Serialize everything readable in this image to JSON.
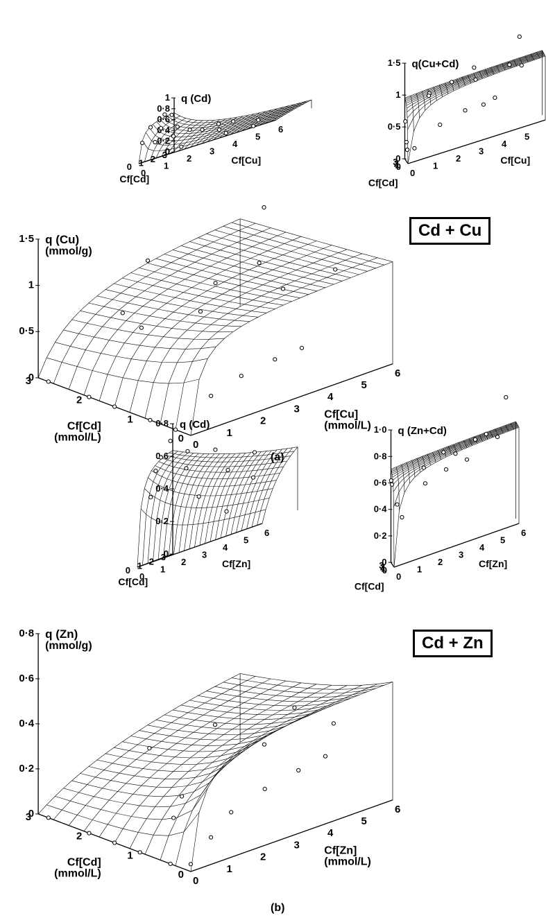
{
  "labels": {
    "panel_a": "(a)",
    "panel_b": "(b)",
    "system_a": "Cd + Cu",
    "system_b": "Cd + Zn"
  },
  "chart_data": [
    {
      "type": "surface3d",
      "title": "q (Cd)",
      "z_unit": "",
      "xlabel": "Cf[Cd]",
      "xlabel_unit": "",
      "ylabel": "Cf[Cu]",
      "ylabel_unit": "",
      "x_ticks": [
        "0",
        "1",
        "2",
        "3"
      ],
      "y_ticks": [
        "0",
        "1",
        "2",
        "3",
        "4",
        "5",
        "6"
      ],
      "z_ticks": [
        "0",
        "0·2",
        "0·4",
        "0·6",
        "0·8",
        "1"
      ],
      "xlim": [
        0,
        3
      ],
      "ylim": [
        0,
        6
      ],
      "zlim": [
        0,
        1
      ],
      "surface": "q = 0.8·x/(0.3 + x + 2y)",
      "points": [
        [
          0.3,
          0,
          0.36
        ],
        [
          1.0,
          0,
          0.6
        ],
        [
          2.2,
          0,
          0.75
        ],
        [
          2.8,
          0,
          0.7
        ],
        [
          0.8,
          0.3,
          0.3
        ],
        [
          1.5,
          0.2,
          0.52
        ],
        [
          2.5,
          0.4,
          0.45
        ],
        [
          1.0,
          1.0,
          0.3
        ],
        [
          2.0,
          1.2,
          0.32
        ],
        [
          1.5,
          2.0,
          0.25
        ],
        [
          2.5,
          2.2,
          0.26
        ],
        [
          0.5,
          1.6,
          0.06
        ],
        [
          1.0,
          3.0,
          0.15
        ],
        [
          1.8,
          3.2,
          0.22
        ],
        [
          0.6,
          3.5,
          0.05
        ],
        [
          1.4,
          4.5,
          0.1
        ],
        [
          0.4,
          4.8,
          0.02
        ]
      ]
    },
    {
      "type": "surface3d",
      "title": "q(Cu+Cd)",
      "z_unit": "",
      "xlabel": "Cf[Cd]",
      "xlabel_unit": "",
      "ylabel": "Cf[Cu]",
      "ylabel_unit": "",
      "x_ticks": [
        "0",
        "1",
        "2",
        "3"
      ],
      "y_ticks": [
        "0",
        "1",
        "2",
        "3",
        "4",
        "5",
        "6"
      ],
      "z_ticks": [
        "0",
        "0·5",
        "1",
        "1·5"
      ],
      "xlim": [
        0,
        3
      ],
      "ylim": [
        0,
        6
      ],
      "zlim": [
        0,
        1.5
      ],
      "surface": "q = 1.05·(x+y)/(0.3 + x + y)",
      "points": [
        [
          2.5,
          0,
          0.6
        ],
        [
          1.5,
          0,
          0.3
        ],
        [
          0.7,
          0,
          0.2
        ],
        [
          0.3,
          0.3,
          0.2
        ],
        [
          0,
          1.4,
          0.45
        ],
        [
          0,
          2.5,
          0.55
        ],
        [
          0,
          3.3,
          0.55
        ],
        [
          0,
          3.8,
          0.6
        ],
        [
          1.5,
          1.0,
          0.95
        ],
        [
          2.0,
          2.0,
          1.0
        ],
        [
          1.0,
          3.0,
          0.95
        ],
        [
          2.5,
          3.0,
          1.1
        ],
        [
          1.5,
          4.5,
          1.0
        ],
        [
          2.8,
          5.0,
          1.35
        ],
        [
          0.8,
          5.0,
          0.95
        ],
        [
          2.0,
          1.0,
          0.9
        ]
      ]
    },
    {
      "type": "surface3d",
      "title": "q (Cu)",
      "z_unit": "(mmol/g)",
      "xlabel": "Cf[Cd]",
      "xlabel_unit": "(mmol/L)",
      "ylabel": "Cf[Cu]",
      "ylabel_unit": "(mmol/L)",
      "x_ticks": [
        "0",
        "1",
        "2",
        "3"
      ],
      "y_ticks": [
        "0",
        "1",
        "2",
        "3",
        "4",
        "5",
        "6"
      ],
      "z_ticks": [
        "0",
        "0·5",
        "1",
        "1·5"
      ],
      "xlim": [
        0,
        3
      ],
      "ylim": [
        0,
        6
      ],
      "zlim": [
        0,
        1.5
      ],
      "surface": "q = 1.15·y/(0.25 + 0.35x + y)",
      "points": [
        [
          2.8,
          0,
          0
        ],
        [
          2.0,
          0,
          0
        ],
        [
          1.5,
          0,
          0
        ],
        [
          0.8,
          0,
          0
        ],
        [
          0.3,
          0,
          0
        ],
        [
          0,
          0.6,
          0.35
        ],
        [
          0,
          1.5,
          0.45
        ],
        [
          0,
          2.5,
          0.5
        ],
        [
          0,
          3.3,
          0.52
        ],
        [
          1.5,
          0.8,
          0.75
        ],
        [
          2.2,
          1.3,
          0.7
        ],
        [
          1.0,
          1.8,
          0.9
        ],
        [
          2.5,
          2.5,
          1.05
        ],
        [
          1.5,
          3.0,
          0.95
        ],
        [
          0.7,
          3.8,
          0.95
        ],
        [
          1.5,
          4.3,
          1.0
        ],
        [
          2.2,
          5.5,
          1.3
        ],
        [
          0.6,
          5.2,
          1.0
        ]
      ]
    },
    {
      "type": "surface3d",
      "title": "q (Cd)",
      "z_unit": "",
      "xlabel": "Cf[Cd]",
      "xlabel_unit": "",
      "ylabel": "Cf[Zn]",
      "ylabel_unit": "",
      "x_ticks": [
        "0",
        "1",
        "2",
        "3"
      ],
      "y_ticks": [
        "0",
        "1",
        "2",
        "3",
        "4",
        "5",
        "6"
      ],
      "z_ticks": [
        "0",
        "0·2",
        "0·4",
        "0·6",
        "0·8"
      ],
      "xlim": [
        0,
        3
      ],
      "ylim": [
        0,
        6
      ],
      "zlim": [
        0,
        0.8
      ],
      "surface": "q = 0.7·x/(0.3 + x + 0.35y)",
      "points": [
        [
          2.8,
          0,
          0.7
        ],
        [
          2.0,
          0,
          0.62
        ],
        [
          1.2,
          0.2,
          0.55
        ],
        [
          0.6,
          0.3,
          0.4
        ],
        [
          2.5,
          1.0,
          0.6
        ],
        [
          1.5,
          1.5,
          0.5
        ],
        [
          2.2,
          2.5,
          0.55
        ],
        [
          0.8,
          2.5,
          0.3
        ],
        [
          1.5,
          3.5,
          0.4
        ],
        [
          0.5,
          4.0,
          0.15
        ],
        [
          2.0,
          4.5,
          0.45
        ],
        [
          1.0,
          5.0,
          0.3
        ]
      ]
    },
    {
      "type": "surface3d",
      "title": "q (Zn+Cd)",
      "z_unit": "",
      "xlabel": "Cf[Cd]",
      "xlabel_unit": "",
      "ylabel": "Cf[Zn]",
      "ylabel_unit": "",
      "x_ticks": [
        "0",
        "1",
        "2",
        "3"
      ],
      "y_ticks": [
        "0",
        "1",
        "2",
        "3",
        "4",
        "5",
        "6"
      ],
      "z_ticks": [
        "0",
        "0·2",
        "0·4",
        "0·6",
        "0·8",
        "1·0"
      ],
      "xlim": [
        0,
        3
      ],
      "ylim": [
        0,
        6
      ],
      "zlim": [
        0,
        1
      ],
      "surface": "q = 0.75·(x+y)/(0.2 + x + y)",
      "points": [
        [
          2.8,
          0,
          0.62
        ],
        [
          2.0,
          0,
          0.6
        ],
        [
          1.0,
          0.2,
          0.45
        ],
        [
          0.4,
          0.4,
          0.35
        ],
        [
          0,
          1.5,
          0.55
        ],
        [
          0,
          2.5,
          0.6
        ],
        [
          0,
          3.5,
          0.62
        ],
        [
          2.5,
          5.5,
          0.95
        ],
        [
          1.5,
          1.5,
          0.65
        ],
        [
          2.5,
          2.5,
          0.7
        ],
        [
          1.0,
          3.0,
          0.68
        ],
        [
          2.0,
          4.0,
          0.72
        ],
        [
          0.7,
          5.0,
          0.7
        ],
        [
          1.5,
          4.5,
          0.74
        ]
      ]
    },
    {
      "type": "surface3d",
      "title": "q (Zn)",
      "z_unit": "(mmol/g)",
      "xlabel": "Cf[Cd]",
      "xlabel_unit": "(mmol/L)",
      "ylabel": "Cf[Zn]",
      "ylabel_unit": "(mmol/L)",
      "x_ticks": [
        "0",
        "1",
        "2",
        "3"
      ],
      "y_ticks": [
        "0",
        "1",
        "2",
        "3",
        "4",
        "5",
        "6"
      ],
      "z_ticks": [
        "0",
        "0·2",
        "0·4",
        "0·6",
        "0·8"
      ],
      "xlim": [
        0,
        3
      ],
      "ylim": [
        0,
        6
      ],
      "zlim": [
        0,
        0.8
      ],
      "surface": "q = 0.55·y/(0.3 + 1.5x + y)",
      "points": [
        [
          2.8,
          0,
          0
        ],
        [
          2.0,
          0,
          0
        ],
        [
          1.5,
          0,
          0
        ],
        [
          1.0,
          0,
          0
        ],
        [
          0.4,
          0,
          0
        ],
        [
          0.2,
          0.3,
          0
        ],
        [
          0,
          0.6,
          0.12
        ],
        [
          0,
          1.2,
          0.2
        ],
        [
          0,
          2.2,
          0.25
        ],
        [
          0,
          3.2,
          0.28
        ],
        [
          0,
          4.0,
          0.3
        ],
        [
          1.5,
          2.0,
          0.1
        ],
        [
          1.0,
          1.0,
          0.1
        ],
        [
          2.5,
          4.5,
          0.2
        ],
        [
          1.6,
          5.5,
          0.3
        ],
        [
          2.8,
          3.0,
          0.15
        ],
        [
          0.5,
          5.0,
          0.35
        ],
        [
          1.2,
          4.0,
          0.25
        ]
      ]
    }
  ]
}
